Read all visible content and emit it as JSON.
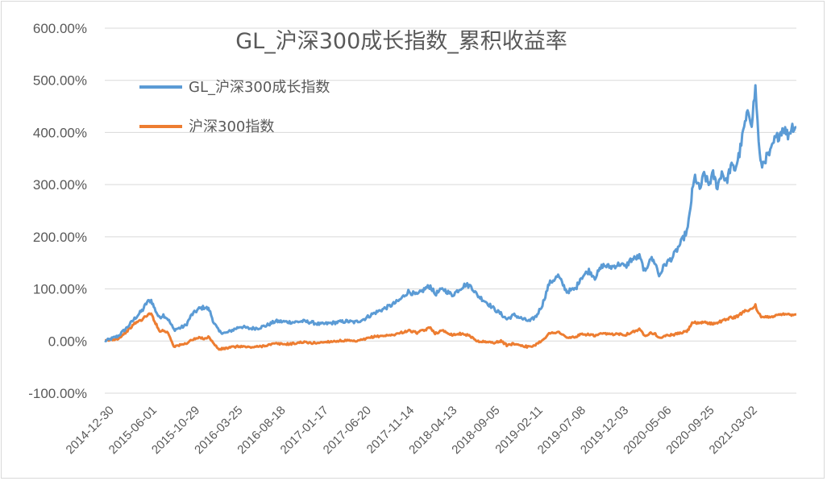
{
  "chart_data": {
    "type": "line",
    "title": "GL_沪深300成长指数_累积收益率",
    "xlabel": "",
    "ylabel": "",
    "ylim": [
      -1.0,
      6.0
    ],
    "y_ticks": [
      -1.0,
      0.0,
      1.0,
      2.0,
      3.0,
      4.0,
      5.0,
      6.0
    ],
    "y_tick_labels": [
      "-100.00%",
      "0.00%",
      "100.00%",
      "200.00%",
      "300.00%",
      "400.00%",
      "500.00%",
      "600.00%"
    ],
    "x_tick_labels": [
      "2014-12-30",
      "2015-06-01",
      "2015-10-29",
      "2016-03-25",
      "2016-08-18",
      "2017-01-17",
      "2017-06-20",
      "2017-11-14",
      "2018-04-13",
      "2018-09-05",
      "2019-02-11",
      "2019-07-08",
      "2019-12-03",
      "2020-05-06",
      "2020-09-25",
      "2021-03-02"
    ],
    "x_range": [
      "2014-12-30",
      "2021-07-09"
    ],
    "legend_position": "top-left",
    "grid": "horizontal",
    "series": [
      {
        "name": "GL_沪深300成长指数",
        "color": "#5b9bd5",
        "points": [
          [
            "2014-12-30",
            0.0
          ],
          [
            "2015-01-20",
            0.04
          ],
          [
            "2015-02-15",
            0.1
          ],
          [
            "2015-03-15",
            0.25
          ],
          [
            "2015-04-15",
            0.45
          ],
          [
            "2015-05-10",
            0.6
          ],
          [
            "2015-05-25",
            0.75
          ],
          [
            "2015-06-08",
            0.78
          ],
          [
            "2015-06-20",
            0.62
          ],
          [
            "2015-07-05",
            0.45
          ],
          [
            "2015-07-20",
            0.5
          ],
          [
            "2015-08-05",
            0.42
          ],
          [
            "2015-08-25",
            0.22
          ],
          [
            "2015-09-15",
            0.25
          ],
          [
            "2015-10-05",
            0.3
          ],
          [
            "2015-10-25",
            0.5
          ],
          [
            "2015-11-20",
            0.62
          ],
          [
            "2015-12-10",
            0.65
          ],
          [
            "2015-12-25",
            0.6
          ],
          [
            "2016-01-10",
            0.35
          ],
          [
            "2016-01-28",
            0.18
          ],
          [
            "2016-02-20",
            0.15
          ],
          [
            "2016-03-10",
            0.2
          ],
          [
            "2016-04-10",
            0.28
          ],
          [
            "2016-05-10",
            0.24
          ],
          [
            "2016-06-10",
            0.25
          ],
          [
            "2016-07-10",
            0.3
          ],
          [
            "2016-08-10",
            0.38
          ],
          [
            "2016-09-10",
            0.37
          ],
          [
            "2016-10-10",
            0.36
          ],
          [
            "2016-11-10",
            0.38
          ],
          [
            "2016-12-10",
            0.36
          ],
          [
            "2017-01-10",
            0.32
          ],
          [
            "2017-02-10",
            0.34
          ],
          [
            "2017-03-10",
            0.36
          ],
          [
            "2017-04-10",
            0.38
          ],
          [
            "2017-05-10",
            0.36
          ],
          [
            "2017-06-10",
            0.42
          ],
          [
            "2017-07-10",
            0.52
          ],
          [
            "2017-08-10",
            0.6
          ],
          [
            "2017-09-10",
            0.68
          ],
          [
            "2017-10-10",
            0.78
          ],
          [
            "2017-11-10",
            0.95
          ],
          [
            "2017-12-10",
            0.88
          ],
          [
            "2018-01-10",
            1.02
          ],
          [
            "2018-01-25",
            1.05
          ],
          [
            "2018-02-10",
            0.9
          ],
          [
            "2018-03-10",
            1.0
          ],
          [
            "2018-04-10",
            0.88
          ],
          [
            "2018-05-10",
            1.02
          ],
          [
            "2018-05-25",
            1.08
          ],
          [
            "2018-06-15",
            1.05
          ],
          [
            "2018-07-05",
            0.88
          ],
          [
            "2018-08-05",
            0.75
          ],
          [
            "2018-09-05",
            0.6
          ],
          [
            "2018-09-25",
            0.52
          ],
          [
            "2018-10-15",
            0.42
          ],
          [
            "2018-11-10",
            0.5
          ],
          [
            "2018-12-10",
            0.42
          ],
          [
            "2019-01-03",
            0.38
          ],
          [
            "2019-01-25",
            0.48
          ],
          [
            "2019-02-15",
            0.7
          ],
          [
            "2019-03-10",
            1.1
          ],
          [
            "2019-04-10",
            1.25
          ],
          [
            "2019-05-10",
            0.95
          ],
          [
            "2019-06-10",
            1.0
          ],
          [
            "2019-06-25",
            1.2
          ],
          [
            "2019-07-25",
            1.35
          ],
          [
            "2019-08-15",
            1.22
          ],
          [
            "2019-09-10",
            1.45
          ],
          [
            "2019-10-10",
            1.42
          ],
          [
            "2019-11-10",
            1.48
          ],
          [
            "2019-11-28",
            1.42
          ],
          [
            "2019-12-15",
            1.55
          ],
          [
            "2020-01-15",
            1.62
          ],
          [
            "2020-02-05",
            1.3
          ],
          [
            "2020-02-20",
            1.6
          ],
          [
            "2020-03-10",
            1.5
          ],
          [
            "2020-03-23",
            1.25
          ],
          [
            "2020-04-10",
            1.45
          ],
          [
            "2020-05-10",
            1.62
          ],
          [
            "2020-06-10",
            1.92
          ],
          [
            "2020-06-30",
            2.15
          ],
          [
            "2020-07-15",
            2.85
          ],
          [
            "2020-07-25",
            3.15
          ],
          [
            "2020-08-10",
            2.9
          ],
          [
            "2020-08-25",
            3.2
          ],
          [
            "2020-09-10",
            3.0
          ],
          [
            "2020-09-25",
            3.2
          ],
          [
            "2020-10-10",
            2.95
          ],
          [
            "2020-10-25",
            3.25
          ],
          [
            "2020-11-10",
            3.05
          ],
          [
            "2020-11-25",
            3.35
          ],
          [
            "2020-12-10",
            3.3
          ],
          [
            "2020-12-25",
            3.6
          ],
          [
            "2021-01-10",
            4.1
          ],
          [
            "2021-01-25",
            4.4
          ],
          [
            "2021-02-05",
            4.2
          ],
          [
            "2021-02-18",
            4.85
          ],
          [
            "2021-02-25",
            4.2
          ],
          [
            "2021-03-05",
            3.55
          ],
          [
            "2021-03-10",
            3.35
          ],
          [
            "2021-03-25",
            3.5
          ],
          [
            "2021-04-10",
            3.6
          ],
          [
            "2021-04-25",
            3.85
          ],
          [
            "2021-05-10",
            3.95
          ],
          [
            "2021-05-25",
            4.1
          ],
          [
            "2021-06-10",
            3.95
          ],
          [
            "2021-06-25",
            4.12
          ],
          [
            "2021-07-09",
            4.1
          ]
        ]
      },
      {
        "name": "沪深300指数",
        "color": "#ed7d31",
        "points": [
          [
            "2014-12-30",
            0.0
          ],
          [
            "2015-01-20",
            0.02
          ],
          [
            "2015-02-15",
            0.05
          ],
          [
            "2015-03-15",
            0.18
          ],
          [
            "2015-04-15",
            0.35
          ],
          [
            "2015-05-10",
            0.42
          ],
          [
            "2015-05-25",
            0.5
          ],
          [
            "2015-06-08",
            0.52
          ],
          [
            "2015-06-20",
            0.38
          ],
          [
            "2015-07-05",
            0.2
          ],
          [
            "2015-07-20",
            0.2
          ],
          [
            "2015-08-05",
            0.16
          ],
          [
            "2015-08-25",
            -0.1
          ],
          [
            "2015-09-15",
            -0.08
          ],
          [
            "2015-10-05",
            -0.05
          ],
          [
            "2015-10-25",
            0.02
          ],
          [
            "2015-11-20",
            0.06
          ],
          [
            "2015-12-10",
            0.05
          ],
          [
            "2015-12-25",
            0.08
          ],
          [
            "2016-01-10",
            -0.06
          ],
          [
            "2016-01-28",
            -0.16
          ],
          [
            "2016-02-20",
            -0.14
          ],
          [
            "2016-03-10",
            -0.12
          ],
          [
            "2016-04-10",
            -0.1
          ],
          [
            "2016-05-10",
            -0.12
          ],
          [
            "2016-06-10",
            -0.11
          ],
          [
            "2016-07-10",
            -0.08
          ],
          [
            "2016-08-10",
            -0.05
          ],
          [
            "2016-09-10",
            -0.06
          ],
          [
            "2016-10-10",
            -0.05
          ],
          [
            "2016-11-10",
            -0.02
          ],
          [
            "2016-12-10",
            -0.04
          ],
          [
            "2017-01-10",
            -0.03
          ],
          [
            "2017-02-10",
            -0.01
          ],
          [
            "2017-03-10",
            0.0
          ],
          [
            "2017-04-10",
            0.01
          ],
          [
            "2017-05-10",
            -0.01
          ],
          [
            "2017-06-10",
            0.03
          ],
          [
            "2017-07-10",
            0.08
          ],
          [
            "2017-08-10",
            0.1
          ],
          [
            "2017-09-10",
            0.11
          ],
          [
            "2017-10-10",
            0.15
          ],
          [
            "2017-11-10",
            0.2
          ],
          [
            "2017-12-10",
            0.16
          ],
          [
            "2018-01-10",
            0.22
          ],
          [
            "2018-01-25",
            0.26
          ],
          [
            "2018-02-10",
            0.15
          ],
          [
            "2018-03-10",
            0.2
          ],
          [
            "2018-04-10",
            0.12
          ],
          [
            "2018-05-10",
            0.14
          ],
          [
            "2018-05-25",
            0.13
          ],
          [
            "2018-06-15",
            0.08
          ],
          [
            "2018-07-05",
            0.0
          ],
          [
            "2018-08-05",
            -0.02
          ],
          [
            "2018-09-05",
            -0.03
          ],
          [
            "2018-09-25",
            0.0
          ],
          [
            "2018-10-15",
            -0.08
          ],
          [
            "2018-11-10",
            -0.05
          ],
          [
            "2018-12-10",
            -0.09
          ],
          [
            "2019-01-03",
            -0.12
          ],
          [
            "2019-01-25",
            -0.06
          ],
          [
            "2019-02-15",
            0.02
          ],
          [
            "2019-03-10",
            0.14
          ],
          [
            "2019-04-10",
            0.18
          ],
          [
            "2019-05-10",
            0.06
          ],
          [
            "2019-06-10",
            0.08
          ],
          [
            "2019-06-25",
            0.12
          ],
          [
            "2019-07-25",
            0.13
          ],
          [
            "2019-08-15",
            0.1
          ],
          [
            "2019-09-10",
            0.14
          ],
          [
            "2019-10-10",
            0.13
          ],
          [
            "2019-11-10",
            0.14
          ],
          [
            "2019-11-28",
            0.12
          ],
          [
            "2019-12-15",
            0.16
          ],
          [
            "2020-01-15",
            0.22
          ],
          [
            "2020-02-05",
            0.1
          ],
          [
            "2020-02-20",
            0.16
          ],
          [
            "2020-03-10",
            0.14
          ],
          [
            "2020-03-23",
            0.05
          ],
          [
            "2020-04-10",
            0.1
          ],
          [
            "2020-05-10",
            0.12
          ],
          [
            "2020-06-10",
            0.16
          ],
          [
            "2020-06-30",
            0.2
          ],
          [
            "2020-07-15",
            0.36
          ],
          [
            "2020-07-25",
            0.35
          ],
          [
            "2020-08-10",
            0.33
          ],
          [
            "2020-08-25",
            0.37
          ],
          [
            "2020-09-10",
            0.34
          ],
          [
            "2020-09-25",
            0.33
          ],
          [
            "2020-10-10",
            0.36
          ],
          [
            "2020-10-25",
            0.38
          ],
          [
            "2020-11-10",
            0.42
          ],
          [
            "2020-11-25",
            0.45
          ],
          [
            "2020-12-10",
            0.45
          ],
          [
            "2020-12-25",
            0.5
          ],
          [
            "2021-01-10",
            0.58
          ],
          [
            "2021-01-25",
            0.6
          ],
          [
            "2021-02-05",
            0.6
          ],
          [
            "2021-02-18",
            0.68
          ],
          [
            "2021-02-25",
            0.55
          ],
          [
            "2021-03-05",
            0.5
          ],
          [
            "2021-03-10",
            0.45
          ],
          [
            "2021-03-25",
            0.46
          ],
          [
            "2021-04-10",
            0.47
          ],
          [
            "2021-04-25",
            0.48
          ],
          [
            "2021-05-10",
            0.5
          ],
          [
            "2021-05-25",
            0.53
          ],
          [
            "2021-06-10",
            0.52
          ],
          [
            "2021-06-25",
            0.5
          ],
          [
            "2021-07-09",
            0.51
          ]
        ]
      }
    ]
  }
}
